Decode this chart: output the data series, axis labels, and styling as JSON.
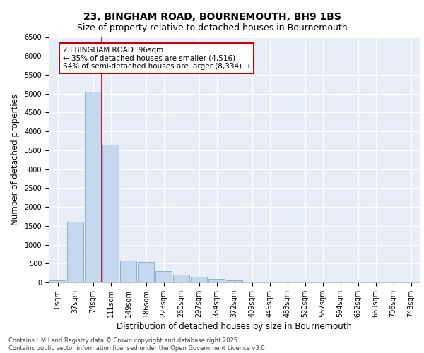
{
  "title_line1": "23, BINGHAM ROAD, BOURNEMOUTH, BH9 1BS",
  "title_line2": "Size of property relative to detached houses in Bournemouth",
  "xlabel": "Distribution of detached houses by size in Bournemouth",
  "ylabel": "Number of detached properties",
  "footnote1": "Contains HM Land Registry data © Crown copyright and database right 2025.",
  "footnote2": "Contains public sector information licensed under the Open Government Licence v3.0.",
  "bar_labels": [
    "0sqm",
    "37sqm",
    "74sqm",
    "111sqm",
    "149sqm",
    "186sqm",
    "223sqm",
    "260sqm",
    "297sqm",
    "334sqm",
    "372sqm",
    "409sqm",
    "446sqm",
    "483sqm",
    "520sqm",
    "557sqm",
    "594sqm",
    "632sqm",
    "669sqm",
    "706sqm",
    "743sqm"
  ],
  "bar_values": [
    50,
    1600,
    5050,
    3650,
    580,
    550,
    300,
    200,
    150,
    100,
    50,
    20,
    10,
    5,
    2,
    1,
    1,
    0,
    0,
    0,
    0
  ],
  "bar_color": "#c5d8f0",
  "bar_edge_color": "#7aaad4",
  "vline_color": "#cc0000",
  "vline_x_index": 2,
  "annotation_text": "23 BINGHAM ROAD: 96sqm\n← 35% of detached houses are smaller (4,516)\n64% of semi-detached houses are larger (8,334) →",
  "annotation_box_color": "white",
  "annotation_box_edge": "#cc0000",
  "ylim": [
    0,
    6500
  ],
  "yticks": [
    0,
    500,
    1000,
    1500,
    2000,
    2500,
    3000,
    3500,
    4000,
    4500,
    5000,
    5500,
    6000,
    6500
  ],
  "background_color": "#e8eef8",
  "grid_color": "white",
  "title_fontsize": 10,
  "subtitle_fontsize": 9,
  "axis_label_fontsize": 8.5,
  "tick_fontsize": 7,
  "annotation_fontsize": 7.5,
  "footnote_fontsize": 6
}
